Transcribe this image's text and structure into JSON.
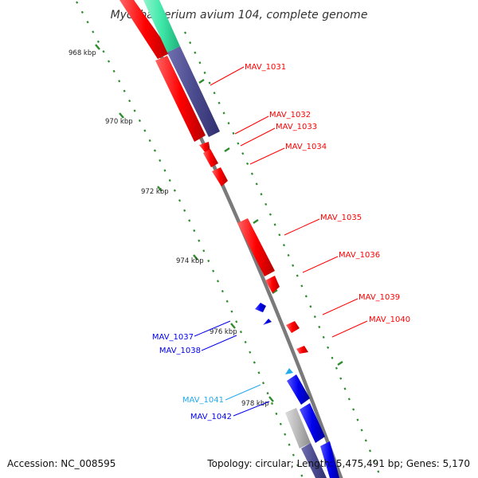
{
  "title": "Mycobacterium avium 104, complete genome",
  "footer": {
    "accession": "Accession: NC_008595",
    "topology": "Topology: circular; Length: 5,475,491 bp; Genes: 5,170"
  },
  "colors": {
    "backbone": "#7a7a7a",
    "tick": "#2e8b2e",
    "red": "#ff0000",
    "blue": "#0000ee",
    "navy": "#4b4b8f",
    "teal": "#3ee8a8",
    "cyan": "#22aaee",
    "grey": "#b8b8b8"
  },
  "kbp_labels": [
    "968 kbp",
    "970 kbp",
    "972 kbp",
    "974 kbp",
    "976 kbp",
    "978 kbp"
  ],
  "genes": [
    {
      "id": "MAV_1031",
      "color": "red"
    },
    {
      "id": "MAV_1032",
      "color": "red"
    },
    {
      "id": "MAV_1033",
      "color": "red"
    },
    {
      "id": "MAV_1034",
      "color": "red"
    },
    {
      "id": "MAV_1035",
      "color": "red"
    },
    {
      "id": "MAV_1036",
      "color": "red"
    },
    {
      "id": "MAV_1039",
      "color": "red"
    },
    {
      "id": "MAV_1040",
      "color": "red"
    },
    {
      "id": "MAV_1037",
      "color": "blue"
    },
    {
      "id": "MAV_1038",
      "color": "blue"
    },
    {
      "id": "MAV_1041",
      "color": "cyan"
    },
    {
      "id": "MAV_1042",
      "color": "blue"
    }
  ]
}
